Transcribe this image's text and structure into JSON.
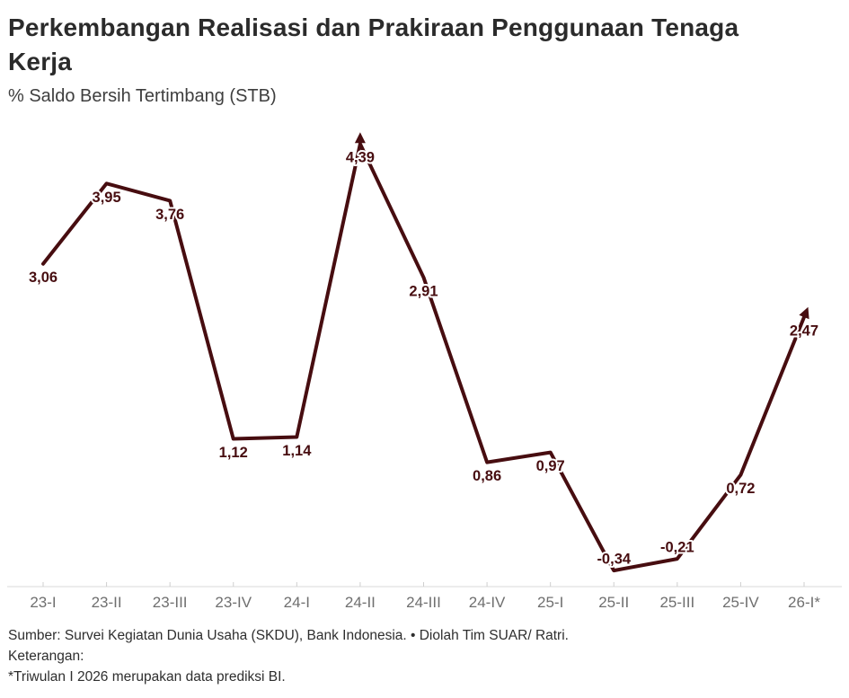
{
  "header": {
    "title": "Perkembangan Realisasi dan Prakiraan Penggunaan Tenaga Kerja",
    "subtitle": "% Saldo Bersih Tertimbang (STB)"
  },
  "chart_data": {
    "type": "line",
    "title": "Perkembangan Realisasi dan Prakiraan Penggunaan Tenaga Kerja",
    "ylabel": "% Saldo Bersih Tertimbang (STB)",
    "xlabel": "",
    "categories": [
      "23-I",
      "23-II",
      "23-III",
      "23-IV",
      "24-I",
      "24-II",
      "24-III",
      "24-IV",
      "25-I",
      "25-II",
      "25-III",
      "25-IV",
      "26-I*"
    ],
    "values": [
      3.06,
      3.95,
      3.76,
      1.12,
      1.14,
      4.39,
      2.91,
      0.86,
      0.97,
      -0.34,
      -0.21,
      0.72,
      2.47
    ],
    "value_labels": [
      "3,06",
      "3,95",
      "3,76",
      "1,12",
      "1,14",
      "4,39",
      "2,91",
      "0,86",
      "0,97",
      "-0,34",
      "-0,21",
      "0,72",
      "2,47"
    ],
    "ylim": [
      -0.55,
      4.55
    ],
    "grid": false,
    "legend": "none",
    "line_color": "#470d10",
    "label_color": "#470d10",
    "axis_color": "#d8d8d8",
    "tick_color": "#cfcfcf",
    "tick_label_color": "#6f6f6f",
    "peak_arrow_category": "24-II",
    "end_arrow": true
  },
  "footer": {
    "source": "Sumber: Survei Kegiatan Dunia Usaha (SKDU), Bank Indonesia. • Diolah Tim SUAR/ Ratri.",
    "note_label": "Keterangan:",
    "note": "*Triwulan I 2026 merupakan data prediksi BI."
  }
}
